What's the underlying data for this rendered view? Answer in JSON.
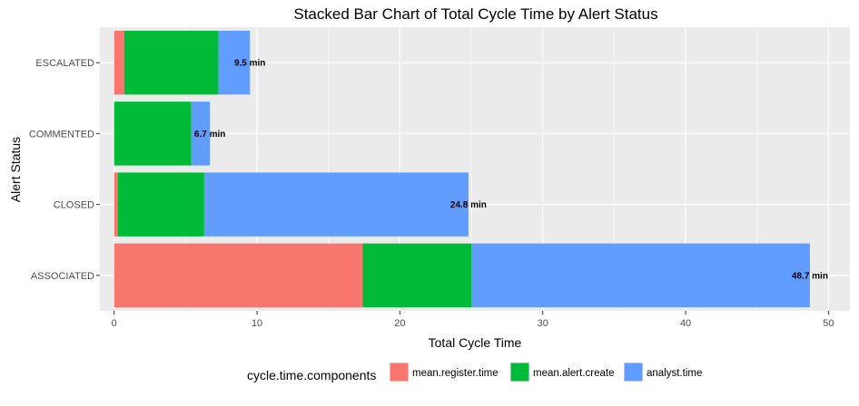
{
  "chart_data": {
    "type": "bar",
    "orientation": "horizontal",
    "stacked": true,
    "title": "Stacked Bar Chart of Total Cycle Time by Alert Status",
    "xlabel": "Total Cycle Time",
    "ylabel": "Alert Status",
    "xlim": [
      -1.0,
      51.5
    ],
    "xticks": [
      0,
      10,
      20,
      30,
      40,
      50
    ],
    "categories": [
      "ESCALATED",
      "COMMENTED",
      "CLOSED",
      "ASSOCIATED"
    ],
    "series": [
      {
        "name": "mean.register.time",
        "color": "#F8766D",
        "values": [
          0.7,
          0.0,
          0.25,
          17.4
        ]
      },
      {
        "name": "mean.alert.create",
        "color": "#00BA38",
        "values": [
          6.6,
          5.4,
          6.05,
          7.6
        ]
      },
      {
        "name": "analyst.time",
        "color": "#619CFF",
        "values": [
          2.2,
          1.3,
          18.5,
          23.7
        ]
      }
    ],
    "totals": [
      9.5,
      6.7,
      24.8,
      48.7
    ],
    "data_labels": [
      "9.5 min",
      "6.7 min",
      "24.8 min",
      "48.7 min"
    ],
    "grid": true,
    "legend": {
      "title": "cycle.time.components",
      "position": "bottom"
    },
    "panel_background": "#EBEBEB",
    "gridline_color": "#FFFFFF"
  }
}
